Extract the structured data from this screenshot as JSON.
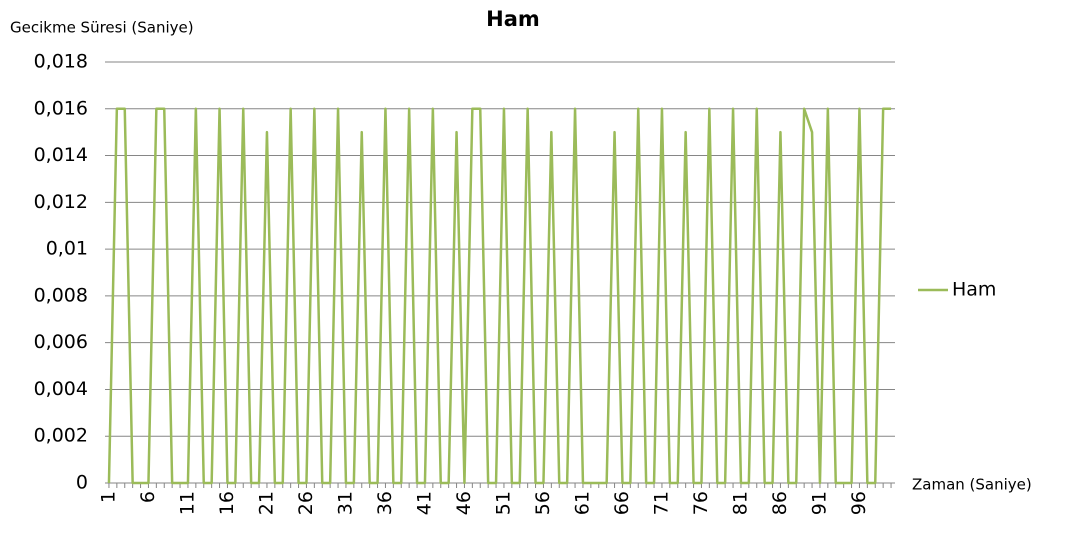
{
  "chart_data": {
    "type": "line",
    "title": "Ham",
    "y_label": "Gecikme Süresi (Saniye)",
    "x_label": "Zaman (Saniye)",
    "categories": [
      1,
      null,
      null,
      null,
      null,
      6,
      null,
      null,
      null,
      null,
      11,
      null,
      null,
      null,
      null,
      16,
      null,
      null,
      null,
      null,
      21,
      null,
      null,
      null,
      null,
      26,
      null,
      null,
      null,
      null,
      31,
      null,
      null,
      null,
      null,
      36,
      null,
      null,
      null,
      null,
      41,
      null,
      null,
      null,
      null,
      46,
      null,
      null,
      null,
      null,
      51,
      null,
      null,
      null,
      null,
      56,
      null,
      null,
      null,
      null,
      61,
      null,
      null,
      null,
      null,
      66,
      null,
      null,
      null,
      null,
      71,
      null,
      null,
      null,
      null,
      76,
      null,
      null,
      null,
      null,
      81,
      null,
      null,
      null,
      null,
      86,
      null,
      null,
      null,
      null,
      91,
      null,
      null,
      null,
      null,
      96,
      null,
      null,
      null,
      null
    ],
    "series": [
      {
        "name": "Ham",
        "color": "#9bbb59",
        "values": [
          0,
          0.016,
          0.016,
          0,
          0,
          0,
          0.016,
          0.016,
          0,
          0,
          0,
          0.016,
          0,
          0,
          0.016,
          0,
          0,
          0.016,
          0,
          0,
          0.015,
          0,
          0,
          0.016,
          0,
          0,
          0.016,
          0,
          0,
          0.016,
          0,
          0,
          0.015,
          0,
          0,
          0.016,
          0,
          0,
          0.016,
          0,
          0,
          0.016,
          0,
          0,
          0.015,
          0,
          0.016,
          0.016,
          0,
          0,
          0.016,
          0,
          0,
          0.016,
          0,
          0,
          0.015,
          0,
          0,
          0.016,
          0,
          0,
          0,
          0,
          0.015,
          0,
          0,
          0.016,
          0,
          0,
          0.016,
          0,
          0,
          0.015,
          0,
          0,
          0.016,
          0,
          0,
          0.016,
          0,
          0,
          0.016,
          0,
          0,
          0.015,
          0,
          0,
          0.016,
          0.015,
          0,
          0.016,
          0,
          0,
          0,
          0.016,
          0,
          0,
          0.016,
          0.016
        ]
      }
    ],
    "ylim": [
      0,
      0.018
    ],
    "yticks": [
      0,
      {
        "value": 0.002,
        "label": "0,002"
      },
      {
        "value": 0.004,
        "label": "0,004"
      },
      {
        "value": 0.006,
        "label": "0,006"
      },
      {
        "value": 0.008,
        "label": "0,008"
      },
      {
        "value": 0.01,
        "label": "0,01"
      },
      {
        "value": 0.012,
        "label": "0,012"
      },
      {
        "value": 0.014,
        "label": "0,014"
      },
      {
        "value": 0.016,
        "label": "0,016"
      },
      {
        "value": 0.018,
        "label": "0,018"
      }
    ],
    "grid": true,
    "legend": "right"
  }
}
